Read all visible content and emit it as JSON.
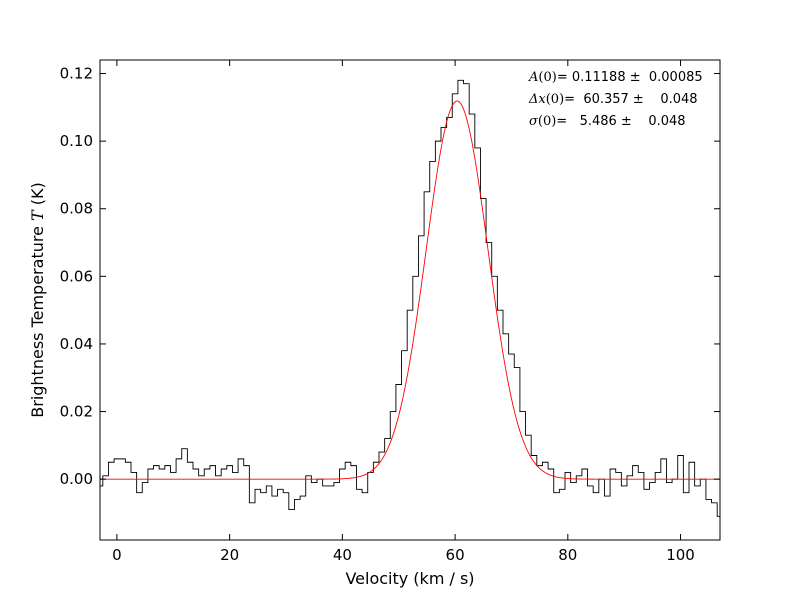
{
  "chart_data": {
    "type": "line",
    "title": "",
    "xlabel": "Velocity (km / s)",
    "ylabel_prefix": "Brightness Temperature ",
    "ylabel_symbol": "T",
    "ylabel_suffix": " (K)",
    "xlim": [
      -3,
      107
    ],
    "ylim": [
      -0.018,
      0.124
    ],
    "x_ticks": [
      0,
      20,
      40,
      60,
      80,
      100
    ],
    "x_tick_labels": [
      "0",
      "20",
      "40",
      "60",
      "80",
      "100"
    ],
    "y_ticks": [
      0.0,
      0.02,
      0.04,
      0.06,
      0.08,
      0.1,
      0.12
    ],
    "y_tick_labels": [
      "0.00",
      "0.02",
      "0.04",
      "0.06",
      "0.08",
      "0.10",
      "0.12"
    ],
    "grid": false,
    "series": [
      {
        "style": "steps-mid",
        "color": "#000000",
        "x": [
          -3,
          -2,
          -1,
          0,
          1,
          2,
          3,
          4,
          5,
          6,
          7,
          8,
          9,
          10,
          11,
          12,
          13,
          14,
          15,
          16,
          17,
          18,
          19,
          20,
          21,
          22,
          23,
          24,
          25,
          26,
          27,
          28,
          29,
          30,
          31,
          32,
          33,
          34,
          35,
          36,
          37,
          38,
          39,
          40,
          41,
          42,
          43,
          44,
          45,
          46,
          47,
          48,
          49,
          50,
          51,
          52,
          53,
          54,
          55,
          56,
          57,
          58,
          59,
          60,
          61,
          62,
          63,
          64,
          65,
          66,
          67,
          68,
          69,
          70,
          71,
          72,
          73,
          74,
          75,
          76,
          77,
          78,
          79,
          80,
          81,
          82,
          83,
          84,
          85,
          86,
          87,
          88,
          89,
          90,
          91,
          92,
          93,
          94,
          95,
          96,
          97,
          98,
          99,
          100,
          101,
          102,
          103,
          104,
          105,
          106,
          107
        ],
        "y": [
          -0.002,
          0.001,
          0.005,
          0.006,
          0.006,
          0.005,
          0.002,
          -0.004,
          -0.001,
          0.003,
          0.004,
          0.003,
          0.004,
          0.002,
          0.006,
          0.009,
          0.005,
          0.003,
          0.001,
          0.003,
          0.004,
          0.001,
          0.003,
          0.004,
          0.002,
          0.006,
          0.004,
          -0.007,
          -0.003,
          -0.004,
          -0.002,
          -0.005,
          -0.003,
          -0.004,
          -0.009,
          -0.006,
          -0.005,
          0.001,
          -0.001,
          0.0,
          -0.002,
          -0.002,
          -0.001,
          0.003,
          0.005,
          0.004,
          -0.003,
          -0.004,
          0.002,
          0.005,
          0.008,
          0.012,
          0.02,
          0.028,
          0.038,
          0.05,
          0.06,
          0.072,
          0.085,
          0.094,
          0.1,
          0.104,
          0.107,
          0.114,
          0.118,
          0.117,
          0.108,
          0.098,
          0.083,
          0.07,
          0.06,
          0.05,
          0.043,
          0.037,
          0.033,
          0.02,
          0.013,
          0.007,
          0.004,
          0.005,
          0.003,
          -0.004,
          -0.003,
          0.002,
          -0.001,
          0.001,
          0.003,
          -0.002,
          -0.004,
          0.0,
          -0.005,
          0.003,
          0.002,
          -0.002,
          0.001,
          0.004,
          0.002,
          -0.003,
          -0.001,
          0.002,
          0.006,
          -0.001,
          0.0,
          0.007,
          -0.004,
          0.005,
          -0.002,
          0.0,
          -0.006,
          -0.007,
          -0.011
        ]
      },
      {
        "style": "gaussian",
        "color": "#ff0000",
        "amplitude": 0.11188,
        "center": 60.357,
        "sigma": 5.486
      }
    ],
    "annotations": [
      {
        "symbol": "A",
        "arg": "(0)",
        "text": "= 0.11188 ±  0.00085"
      },
      {
        "symbol": "Δx",
        "arg": "(0)",
        "text": "=  60.357 ±    0.048"
      },
      {
        "symbol": "σ",
        "arg": "(0)",
        "text": "=   5.486 ±    0.048"
      }
    ]
  }
}
